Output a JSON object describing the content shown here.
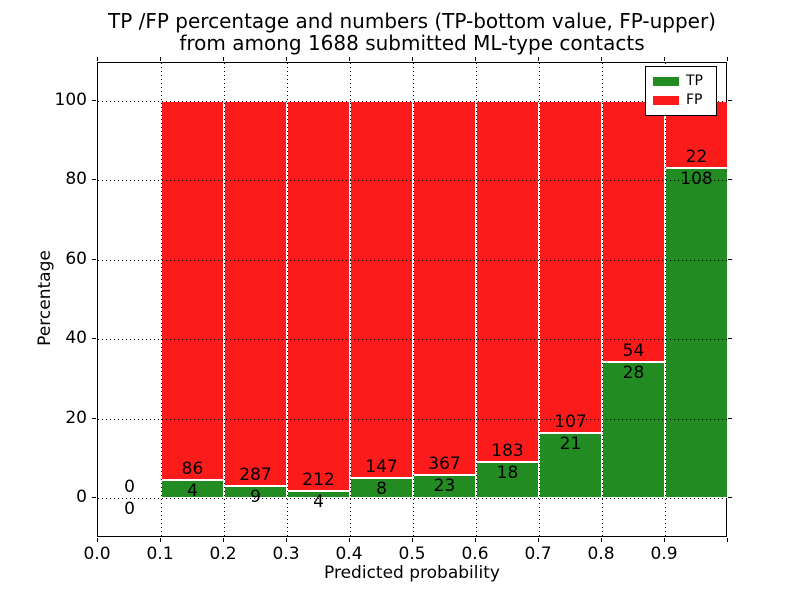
{
  "figure": {
    "title_line1": "TP /FP percentage and numbers (TP-bottom value, FP-upper)",
    "title_line2": "from among 1688 submitted ML-type contacts",
    "xlabel": "Predicted probability",
    "ylabel": "Percentage"
  },
  "legend": {
    "position": "upper right",
    "items": [
      {
        "label": "TP",
        "color": "#228b22"
      },
      {
        "label": "FP",
        "color": "#fc1b1b"
      }
    ]
  },
  "chart_data": {
    "type": "bar",
    "stacked": true,
    "normalized": "each bin stacked to 100%, labels show raw counts",
    "title": "TP /FP percentage and numbers (TP-bottom value, FP-upper) from among 1688 submitted ML-type contacts",
    "xlabel": "Predicted probability",
    "ylabel": "Percentage",
    "total_contacts": 1688,
    "bin_edges": [
      0.0,
      0.1,
      0.2,
      0.3,
      0.4,
      0.5,
      0.6,
      0.7,
      0.8,
      0.9,
      1.0
    ],
    "series": [
      {
        "name": "TP",
        "color": "#228b22",
        "counts": [
          0,
          4,
          9,
          4,
          8,
          23,
          18,
          21,
          28,
          108
        ]
      },
      {
        "name": "FP",
        "color": "#fc1b1b",
        "counts": [
          0,
          86,
          287,
          212,
          147,
          367,
          183,
          107,
          54,
          22
        ]
      }
    ],
    "tp_percent_per_bin": [
      0,
      4.44,
      3.04,
      1.85,
      5.16,
      5.9,
      8.96,
      16.41,
      34.15,
      83.08
    ],
    "xticks": [
      "0.0",
      "0.1",
      "0.2",
      "0.3",
      "0.4",
      "0.5",
      "0.6",
      "0.7",
      "0.8",
      "0.9"
    ],
    "yticks": [
      0,
      20,
      40,
      60,
      80,
      100
    ],
    "xlim": [
      0.0,
      1.0
    ],
    "ylim": [
      -10,
      110
    ],
    "grid": "dotted black, horizontal and vertical, drawn above bars",
    "bar_edge_color": "#ffffff",
    "legend_position": "upper right"
  }
}
